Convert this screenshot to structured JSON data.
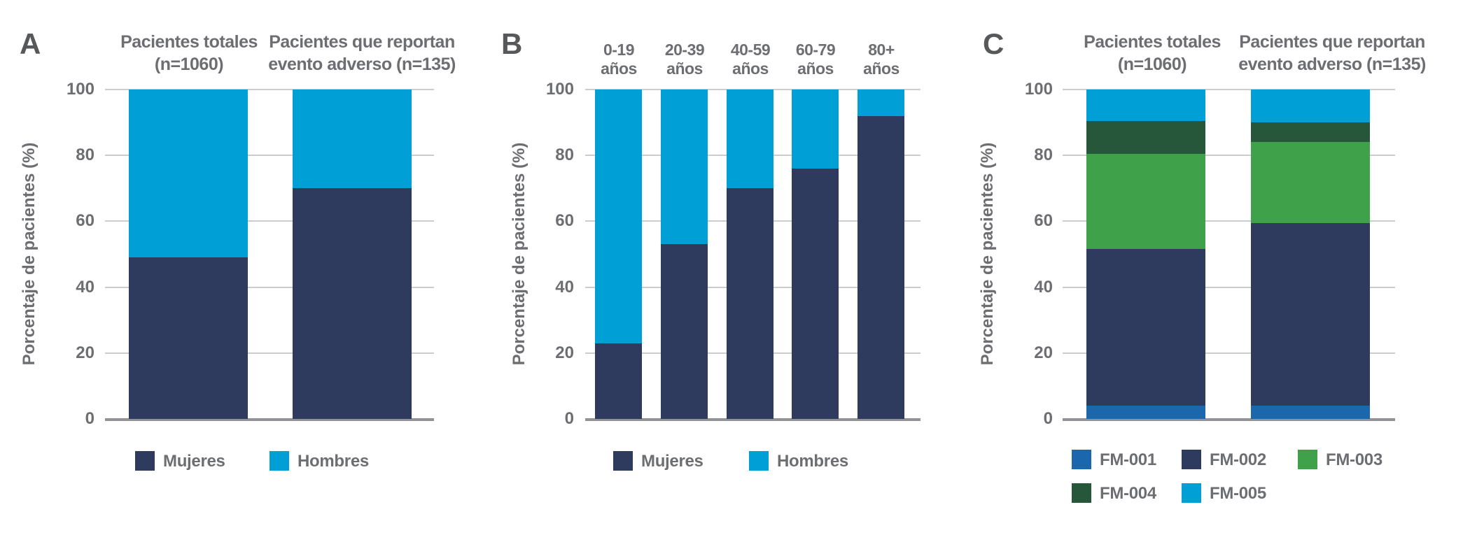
{
  "figure": {
    "ylabel": "Porcentaje de pacientes (%)",
    "yticks": [
      0,
      20,
      40,
      60,
      80,
      100
    ],
    "ylim": [
      0,
      100
    ],
    "grid": true,
    "legend_position": "bottom",
    "colors": {
      "text": "#6d6e71",
      "panel_letter": "#57585a",
      "gridline": "#cbccce",
      "axis_baseline": "#919396",
      "background": "#ffffff",
      "navy": "#2e3a5e",
      "cyan": "#009fd6",
      "blue": "#1b67ae",
      "green": "#3fa24a",
      "dark_green": "#27573a"
    }
  },
  "chart_data": [
    {
      "type": "bar",
      "stacked": true,
      "panel_label": "A",
      "ylabel": "Porcentaje de pacientes (%)",
      "ylim": [
        0,
        100
      ],
      "categories": [
        "Pacientes totales (n=1060)",
        "Pacientes que reportan evento adverso (n=135)"
      ],
      "category_label_lines": [
        [
          "Pacientes totales",
          "(n=1060)"
        ],
        [
          "Pacientes que reportan",
          "evento adverso (n=135)"
        ]
      ],
      "series": [
        {
          "name": "Mujeres",
          "color": "#2e3a5e",
          "values": [
            49,
            70
          ]
        },
        {
          "name": "Hombres",
          "color": "#009fd6",
          "values": [
            51,
            30
          ]
        }
      ]
    },
    {
      "type": "bar",
      "stacked": true,
      "panel_label": "B",
      "ylabel": "Porcentaje de pacientes (%)",
      "ylim": [
        0,
        100
      ],
      "categories": [
        "0-19 años",
        "20-39 años",
        "40-59 años",
        "60-79 años",
        "80+ años"
      ],
      "category_label_lines": [
        [
          "0-19",
          "años"
        ],
        [
          "20-39",
          "años"
        ],
        [
          "40-59",
          "años"
        ],
        [
          "60-79",
          "años"
        ],
        [
          "80+",
          "años"
        ]
      ],
      "series": [
        {
          "name": "Mujeres",
          "color": "#2e3a5e",
          "values": [
            23,
            53,
            70,
            76,
            92
          ]
        },
        {
          "name": "Hombres",
          "color": "#009fd6",
          "values": [
            77,
            47,
            30,
            24,
            8
          ]
        }
      ]
    },
    {
      "type": "bar",
      "stacked": true,
      "panel_label": "C",
      "ylabel": "Porcentaje de pacientes (%)",
      "ylim": [
        0,
        100
      ],
      "categories": [
        "Pacientes totales (n=1060)",
        "Pacientes que reportan evento adverso (n=135)"
      ],
      "category_label_lines": [
        [
          "Pacientes totales",
          "(n=1060)"
        ],
        [
          "Pacientes que reportan",
          "evento adverso (n=135)"
        ]
      ],
      "series": [
        {
          "name": "FM-001",
          "color": "#1b67ae",
          "values": [
            4,
            4
          ]
        },
        {
          "name": "FM-002",
          "color": "#2e3a5e",
          "values": [
            47.5,
            55.5
          ]
        },
        {
          "name": "FM-003",
          "color": "#3fa24a",
          "values": [
            29,
            24.5
          ]
        },
        {
          "name": "FM-004",
          "color": "#27573a",
          "values": [
            10,
            6
          ]
        },
        {
          "name": "FM-005",
          "color": "#009fd6",
          "values": [
            9.5,
            10
          ]
        }
      ]
    }
  ]
}
